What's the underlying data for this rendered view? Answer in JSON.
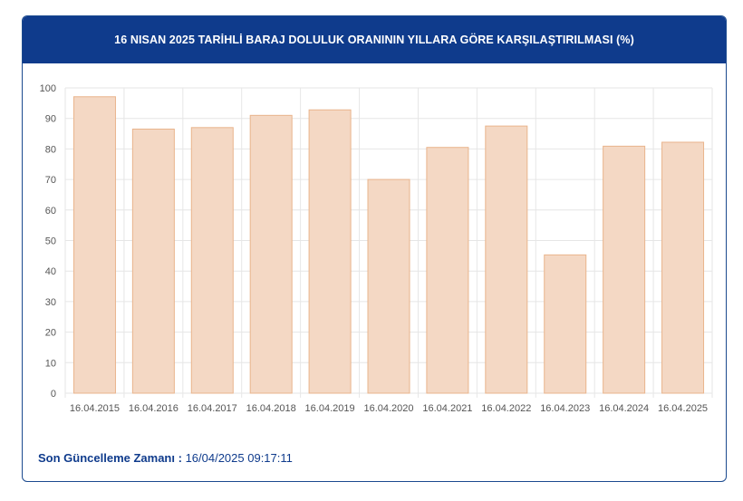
{
  "header": {
    "title": "16 NISAN 2025 TARİHLİ BARAJ DOLULUK ORANININ YILLARA GÖRE KARŞILAŞTIRILMASI (%)"
  },
  "footer": {
    "label": "Son Güncelleme Zamanı :",
    "value": "16/04/2025 09:17:11"
  },
  "colors": {
    "header_bg": "#0f3b8c",
    "bar_fill": "#f4d8c4",
    "bar_stroke": "#e9b48c",
    "grid": "#e6e6e6",
    "tick_text": "#555555"
  },
  "chart_data": {
    "type": "bar",
    "categories": [
      "16.04.2015",
      "16.04.2016",
      "16.04.2017",
      "16.04.2018",
      "16.04.2019",
      "16.04.2020",
      "16.04.2021",
      "16.04.2022",
      "16.04.2023",
      "16.04.2024",
      "16.04.2025"
    ],
    "values": [
      97.1,
      86.5,
      87.0,
      91.0,
      92.8,
      70.0,
      80.5,
      87.5,
      45.3,
      80.9,
      82.2
    ],
    "title": "16 NISAN 2025 TARİHLİ BARAJ DOLULUK ORANININ YILLARA GÖRE KARŞILAŞTIRILMASI (%)",
    "xlabel": "",
    "ylabel": "",
    "ylim": [
      0,
      100
    ],
    "yticks": [
      0,
      10,
      20,
      30,
      40,
      50,
      60,
      70,
      80,
      90,
      100
    ],
    "grid": true,
    "legend": "none"
  }
}
